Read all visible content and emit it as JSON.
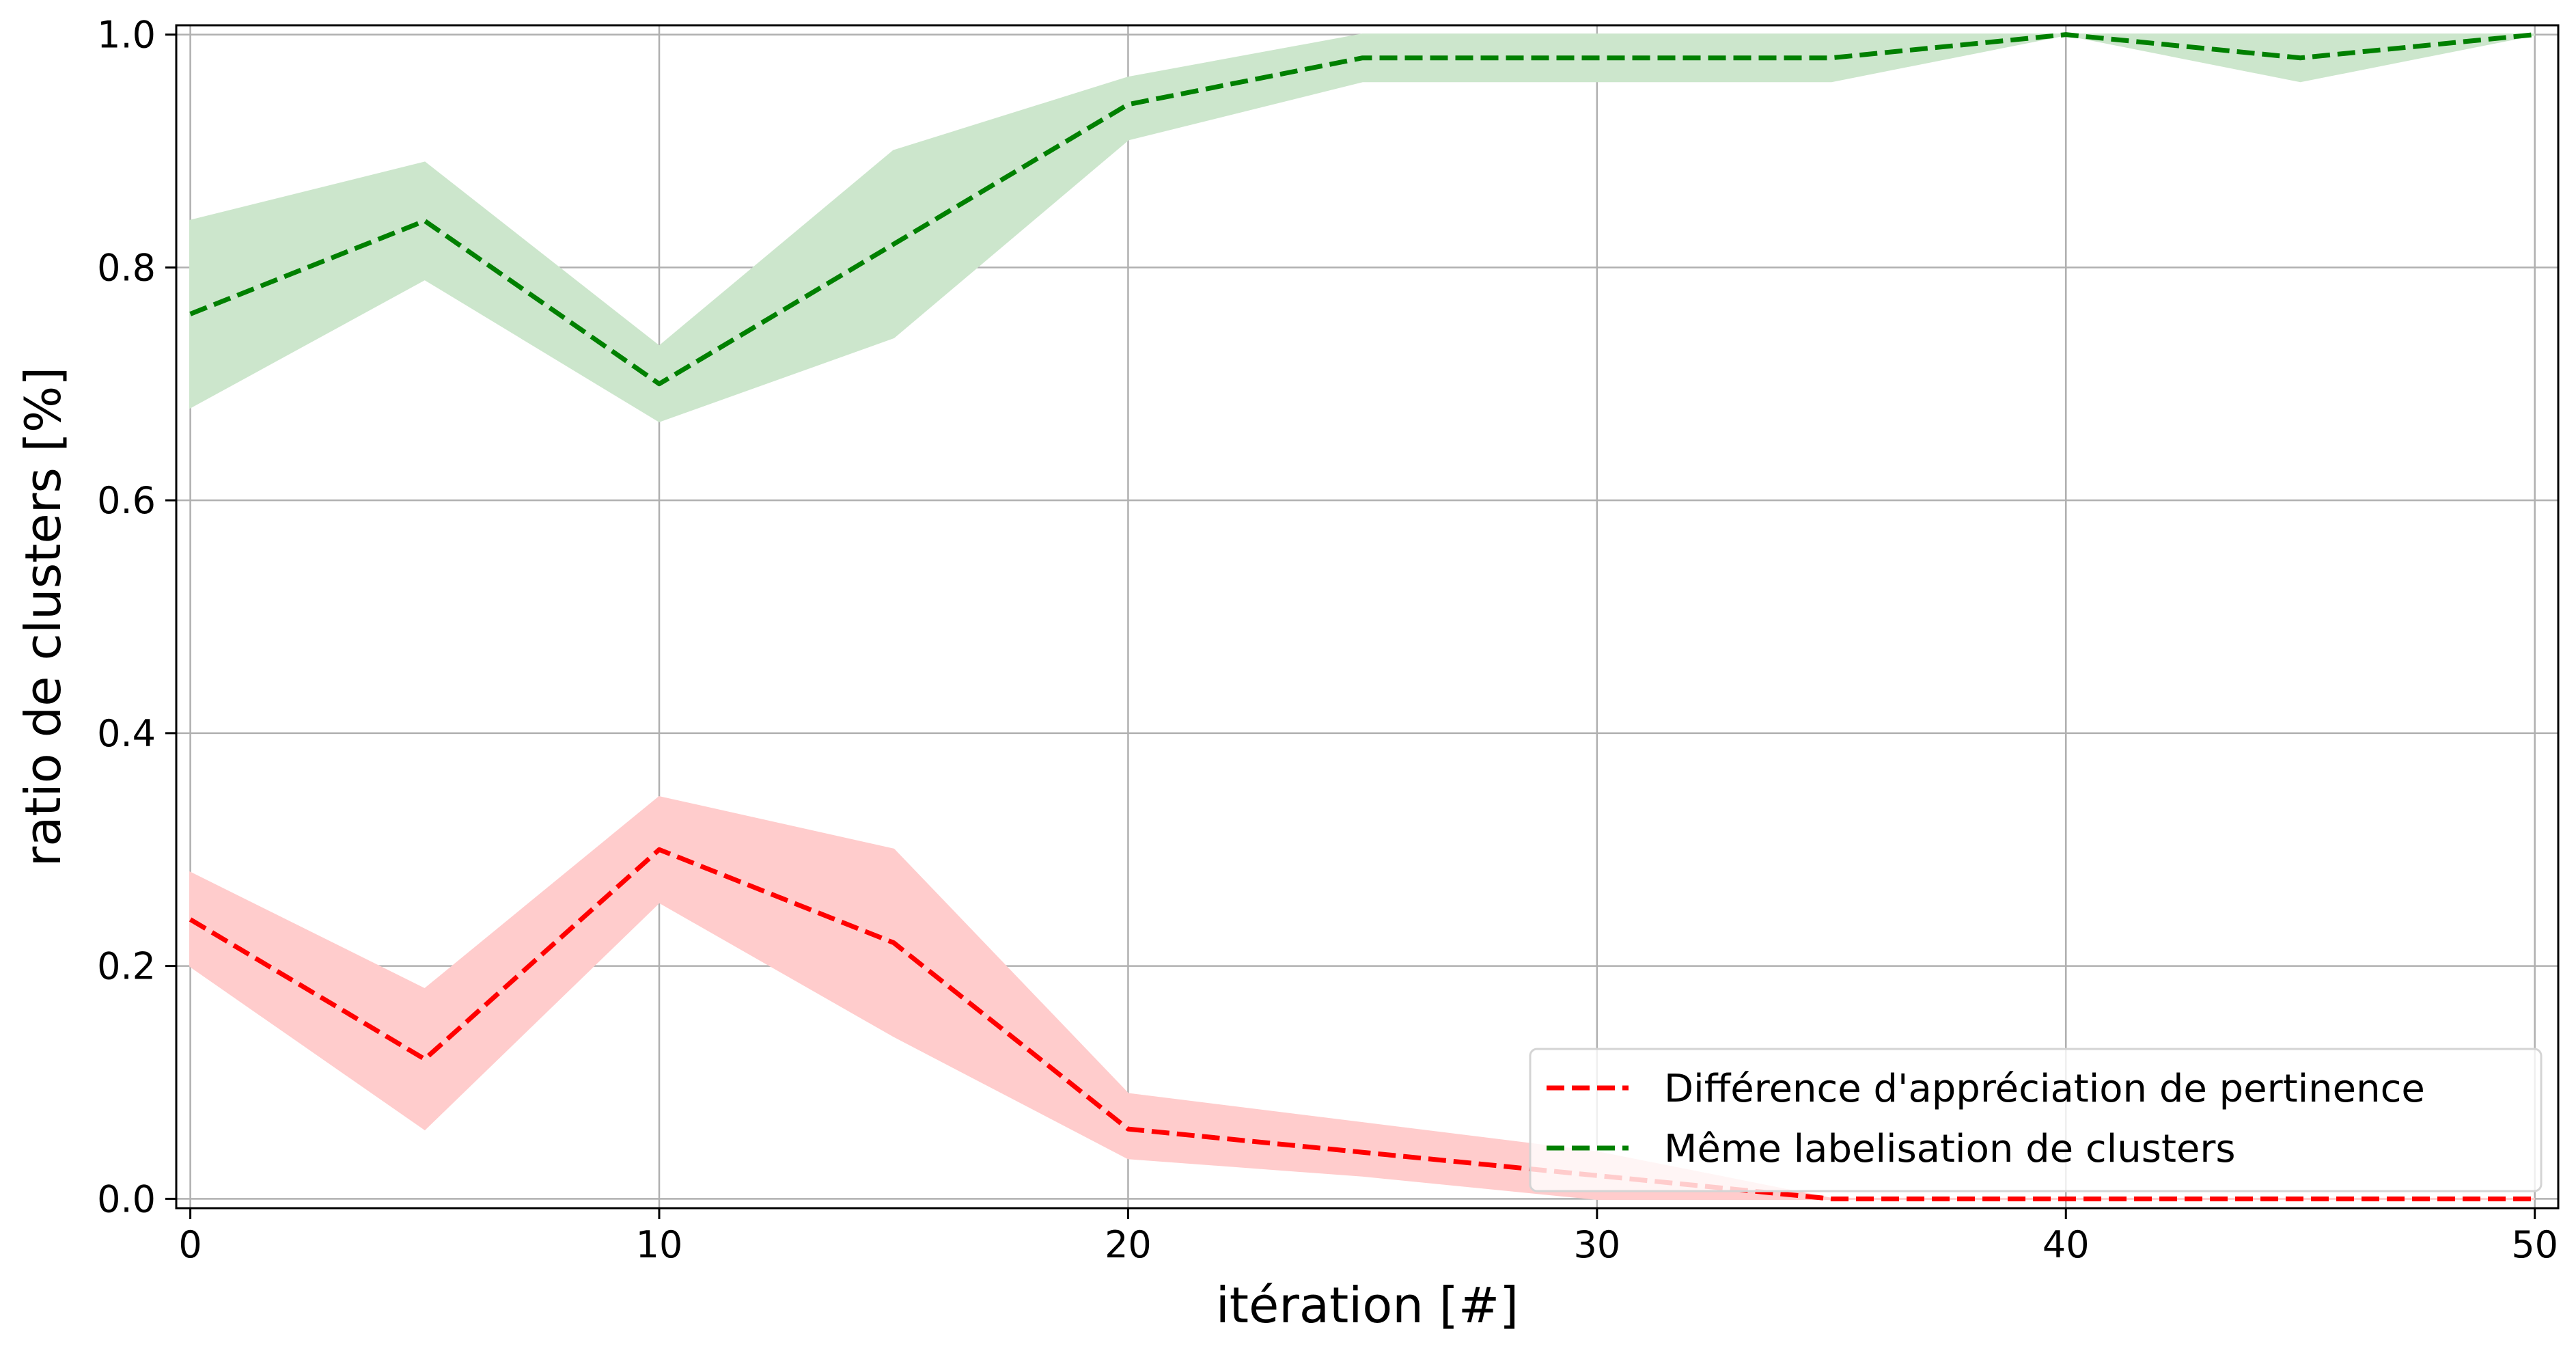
{
  "chart_data": {
    "type": "line",
    "title": "",
    "xlabel": "itération [#]",
    "ylabel": "ratio de clusters [%]",
    "xlim": [
      -0.3,
      50.5
    ],
    "ylim": [
      -0.008,
      1.008
    ],
    "grid": true,
    "x_ticks": [
      0,
      10,
      20,
      30,
      40,
      50
    ],
    "x_tick_labels": [
      "0",
      "10",
      "20",
      "30",
      "40",
      "50"
    ],
    "y_ticks": [
      0.0,
      0.2,
      0.4,
      0.6,
      0.8,
      1.0
    ],
    "y_tick_labels": [
      "0.0",
      "0.2",
      "0.4",
      "0.6",
      "0.8",
      "1.0"
    ],
    "x": [
      0,
      5,
      10,
      15,
      20,
      25,
      30,
      35,
      40,
      45,
      50
    ],
    "legend_position": "lower-right",
    "series": [
      {
        "name": "Différence d'appréciation de pertinence",
        "color": "#ff0000",
        "band_color": "#ffcccc",
        "line_style": "dashed",
        "values": [
          0.24,
          0.12,
          0.3,
          0.22,
          0.06,
          0.04,
          0.02,
          0.0,
          0.0,
          0.0,
          0.0
        ],
        "band_lower": [
          0.2,
          0.06,
          0.255,
          0.14,
          0.035,
          0.02,
          0.0,
          0.0,
          0.0,
          0.0,
          0.0
        ],
        "band_upper": [
          0.28,
          0.18,
          0.345,
          0.3,
          0.09,
          0.065,
          0.04,
          0.0,
          0.0,
          0.0,
          0.0
        ]
      },
      {
        "name": "Même labelisation de clusters",
        "color": "#008000",
        "band_color": "#cce6cc",
        "line_style": "dashed",
        "values": [
          0.76,
          0.84,
          0.7,
          0.82,
          0.94,
          0.98,
          0.98,
          0.98,
          1.0,
          0.98,
          1.0
        ],
        "band_lower": [
          0.68,
          0.79,
          0.668,
          0.74,
          0.91,
          0.96,
          0.96,
          0.96,
          1.0,
          0.96,
          1.0
        ],
        "band_upper": [
          0.84,
          0.89,
          0.732,
          0.9,
          0.963,
          1.0,
          1.0,
          1.0,
          1.0,
          1.0,
          1.0
        ]
      }
    ]
  }
}
